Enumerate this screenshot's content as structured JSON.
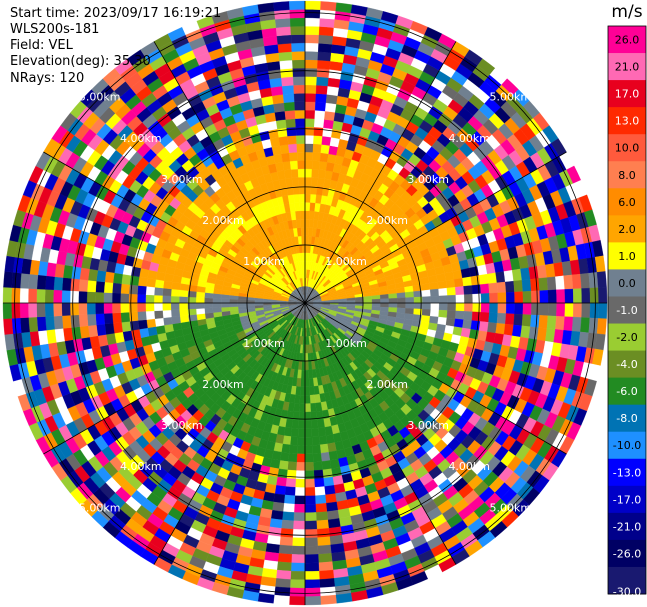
{
  "header": {
    "start_time": "Start time: 2023/09/17 16:19:21",
    "instrument": "WLS200s-181",
    "field": "Field: VEL",
    "elevation": "Elevation(deg): 35.30",
    "nrays": "NRays: 120"
  },
  "chart_data": {
    "type": "heatmap",
    "projection": "polar PPI",
    "field": "VEL",
    "elevation_deg": 35.3,
    "n_rays": 120,
    "range_ring_labels": [
      "1.00km",
      "2.00km",
      "3.00km",
      "4.00km",
      "5.00km"
    ],
    "range_rings_km": [
      1,
      2,
      3,
      4,
      5
    ],
    "colorbar": {
      "unit": "m/s",
      "tick_labels": [
        "26.0",
        "21.0",
        "17.0",
        "13.0",
        "10.0",
        "8.0",
        "6.0",
        "2.0",
        "1.0",
        "0.0",
        "-1.0",
        "-2.0",
        "-4.0",
        "-6.0",
        "-8.0",
        "-10.0",
        "-13.0",
        "-17.0",
        "-21.0",
        "-26.0",
        "-30.0"
      ],
      "bins": [
        {
          "from": 26.0,
          "to": 30.0,
          "color": "#ff0096"
        },
        {
          "from": 21.0,
          "to": 26.0,
          "color": "#ff69b4"
        },
        {
          "from": 17.0,
          "to": 21.0,
          "color": "#e8001e"
        },
        {
          "from": 13.0,
          "to": 17.0,
          "color": "#ff2a00"
        },
        {
          "from": 10.0,
          "to": 13.0,
          "color": "#ff5a3c"
        },
        {
          "from": 8.0,
          "to": 10.0,
          "color": "#ff7f50"
        },
        {
          "from": 6.0,
          "to": 8.0,
          "color": "#ff8c00"
        },
        {
          "from": 2.0,
          "to": 6.0,
          "color": "#ffa500"
        },
        {
          "from": 1.0,
          "to": 2.0,
          "color": "#ffff00"
        },
        {
          "from": 0.0,
          "to": 1.0,
          "color": "#708090"
        },
        {
          "from": -1.0,
          "to": 0.0,
          "color": "#696969"
        },
        {
          "from": -2.0,
          "to": -1.0,
          "color": "#9acd32"
        },
        {
          "from": -4.0,
          "to": -2.0,
          "color": "#6b8e23"
        },
        {
          "from": -6.0,
          "to": -4.0,
          "color": "#228b22"
        },
        {
          "from": -8.0,
          "to": -6.0,
          "color": "#0073b4"
        },
        {
          "from": -10.0,
          "to": -8.0,
          "color": "#1e90ff"
        },
        {
          "from": -13.0,
          "to": -10.0,
          "color": "#0000ff"
        },
        {
          "from": -17.0,
          "to": -13.0,
          "color": "#0000c8"
        },
        {
          "from": -21.0,
          "to": -17.0,
          "color": "#00008b"
        },
        {
          "from": -26.0,
          "to": -21.0,
          "color": "#000064"
        },
        {
          "from": -30.0,
          "to": -26.0,
          "color": "#191970"
        }
      ]
    },
    "pattern": {
      "inner_radius_km_valid": 2.2,
      "northern_sector": "positive velocities 2–6 m/s (orange) with 1–2 m/s (yellow) band",
      "southern_sector": "negative velocities -2 to -6 m/s (green)",
      "east_west_near_center": "near-zero velocities (gray)",
      "outer_ranges": "noisy, all colors"
    },
    "grid": true
  }
}
